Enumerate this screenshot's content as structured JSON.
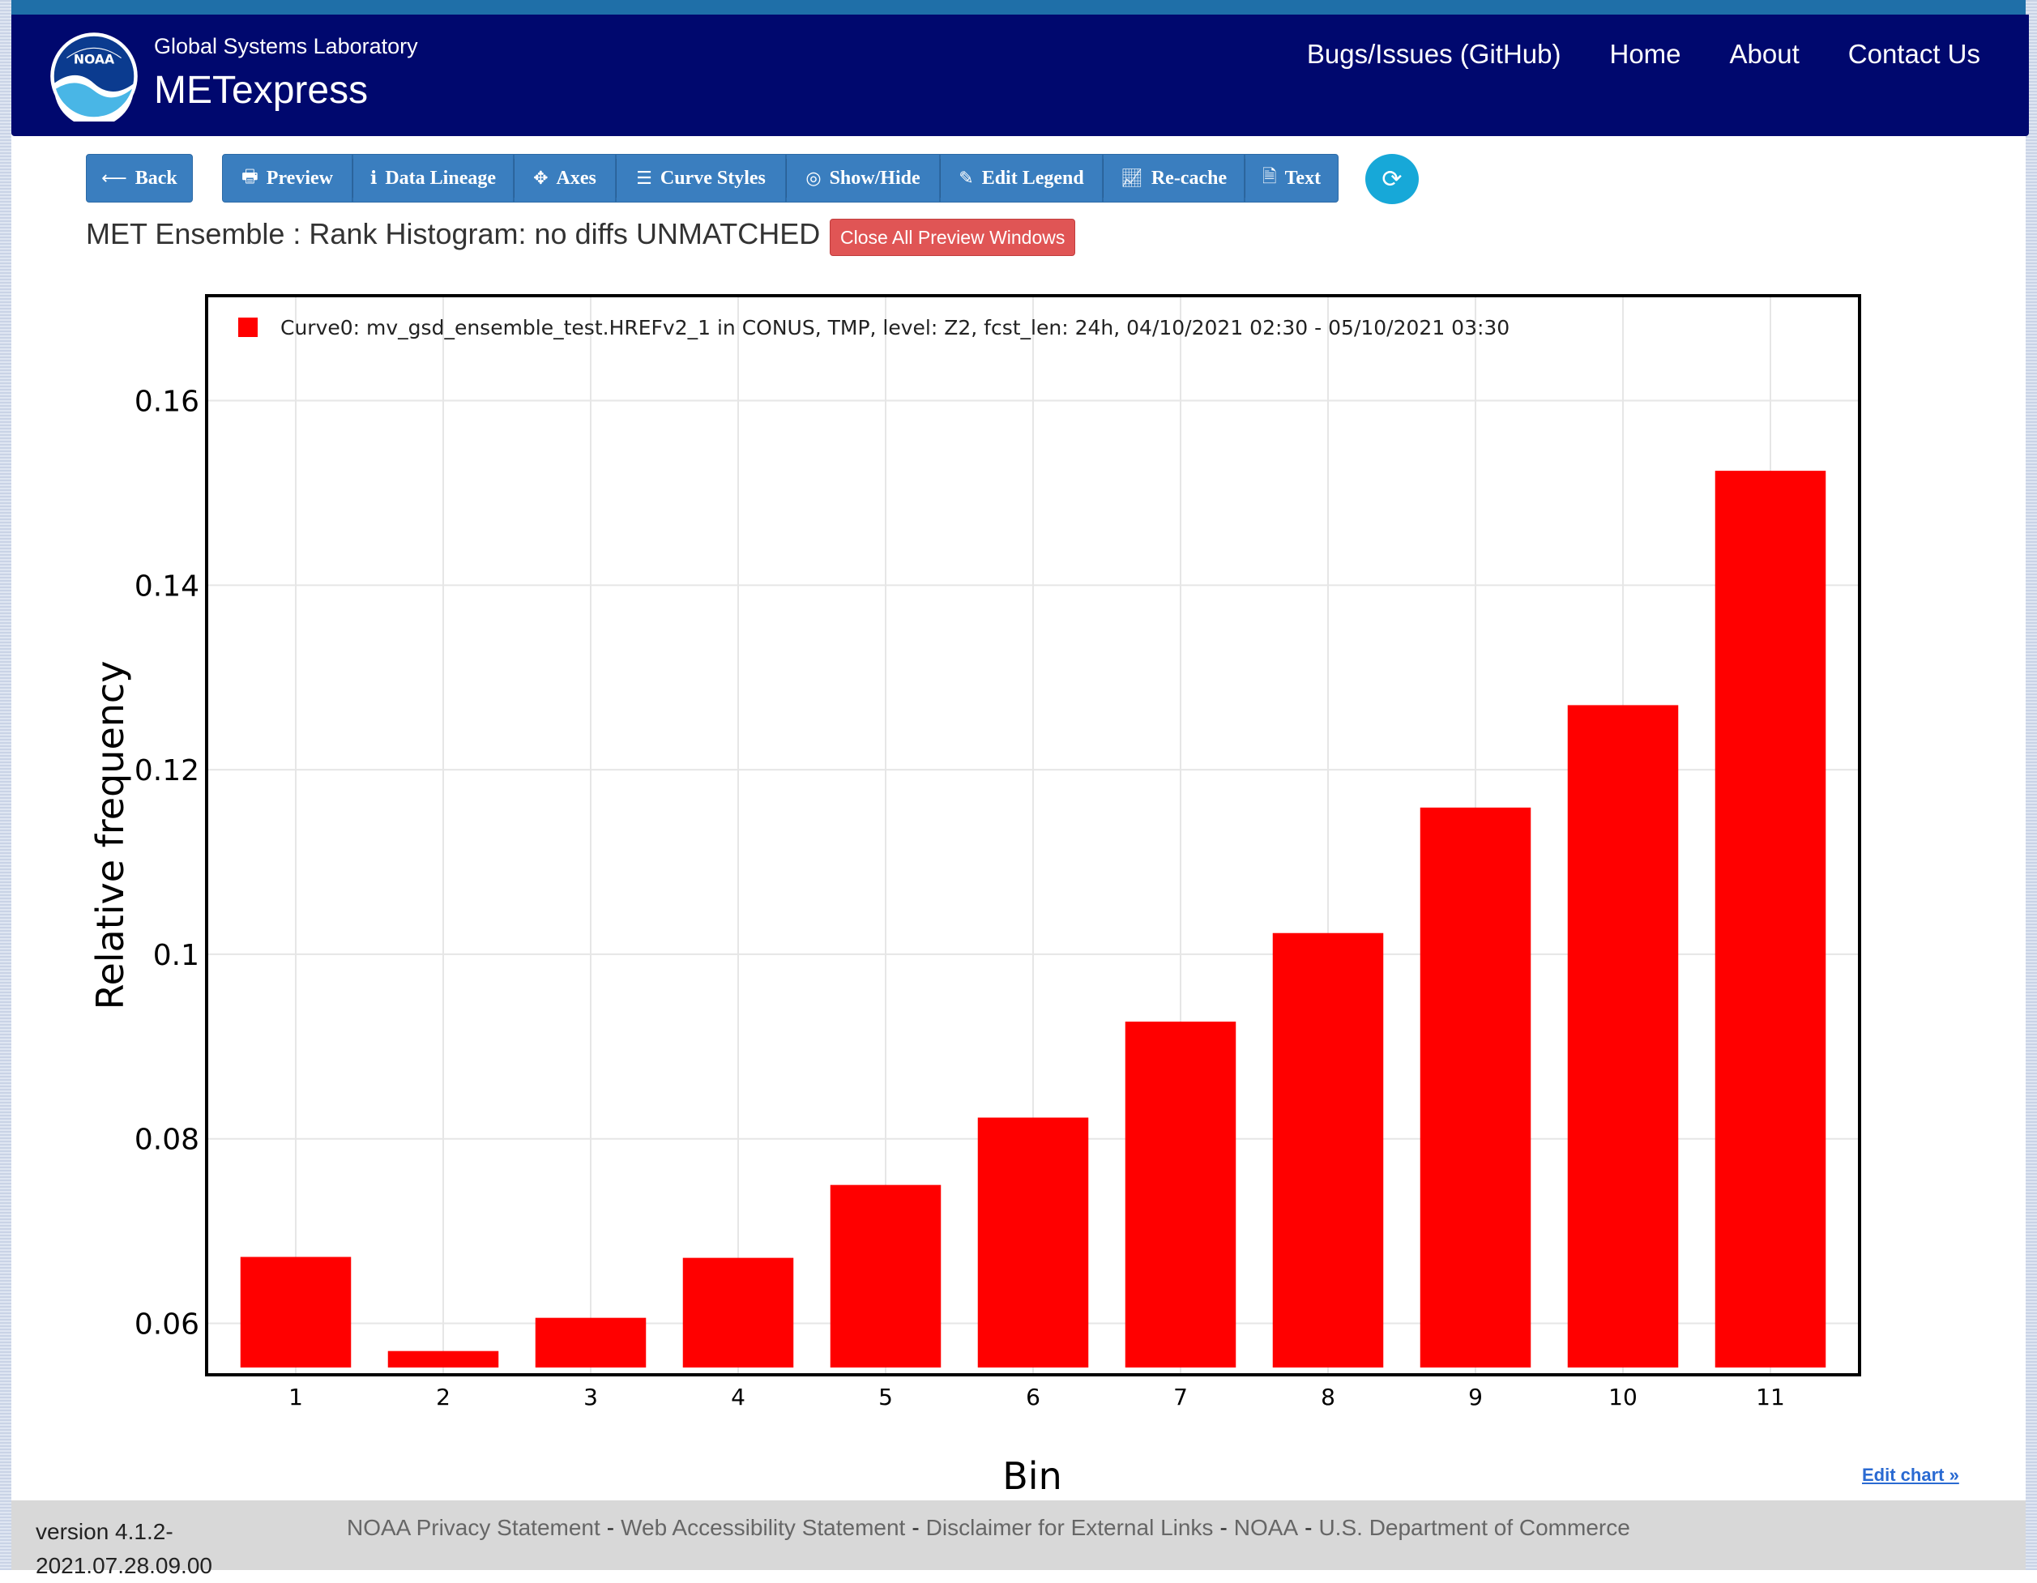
{
  "header": {
    "org": "Global Systems Laboratory",
    "app": "METexpress",
    "logo_text": "NOAA",
    "nav": [
      "Bugs/Issues (GitHub)",
      "Home",
      "About",
      "Contact Us"
    ]
  },
  "toolbar": {
    "back": "Back",
    "buttons": [
      {
        "label": "Preview",
        "icon": "printer-icon"
      },
      {
        "label": "Data Lineage",
        "icon": "info-icon"
      },
      {
        "label": "Axes",
        "icon": "move-icon"
      },
      {
        "label": "Curve Styles",
        "icon": "list-icon"
      },
      {
        "label": "Show/Hide",
        "icon": "eye-slash-icon"
      },
      {
        "label": "Edit Legend",
        "icon": "pencil-icon"
      },
      {
        "label": "Re-cache",
        "icon": "line-chart-icon"
      },
      {
        "label": "Text",
        "icon": "file-text-icon"
      }
    ],
    "refresh_icon": "refresh-icon"
  },
  "plot_title": "MET Ensemble : Rank Histogram: no diffs UNMATCHED",
  "close_all_label": "Close All Preview Windows",
  "chart_data": {
    "type": "bar",
    "categories": [
      "1",
      "2",
      "3",
      "4",
      "5",
      "6",
      "7",
      "8",
      "9",
      "10",
      "11"
    ],
    "series": [
      {
        "name": "Curve0: mv_gsd_ensemble_test.HREFv2_1 in CONUS, TMP, level: Z2, fcst_len: 24h, 04/10/2021 02:30 - 05/10/2021 03:30",
        "color": "#ff0000",
        "values": [
          0.0672,
          0.057,
          0.0606,
          0.0671,
          0.075,
          0.0823,
          0.0927,
          0.1023,
          0.1159,
          0.127,
          0.1524
        ]
      }
    ],
    "xlabel": "Bin",
    "ylabel": "Relative frequency",
    "ylim": [
      0.0546,
      0.1712
    ],
    "yticks": [
      0.06,
      0.08,
      0.1,
      0.12,
      0.14,
      0.16
    ],
    "ytick_labels": [
      "0.06",
      "0.08",
      "0.1",
      "0.12",
      "0.14",
      "0.16"
    ],
    "grid": true,
    "legend": "top-left"
  },
  "edit_chart_label": "Edit chart »",
  "footer": {
    "version_line1": "version 4.1.2-",
    "version_line2": "2021.07.28.09.00",
    "links": [
      "NOAA Privacy Statement",
      "Web Accessibility Statement",
      "Disclaimer for External Links",
      "NOAA",
      "U.S. Department of Commerce"
    ],
    "separator": "-"
  }
}
